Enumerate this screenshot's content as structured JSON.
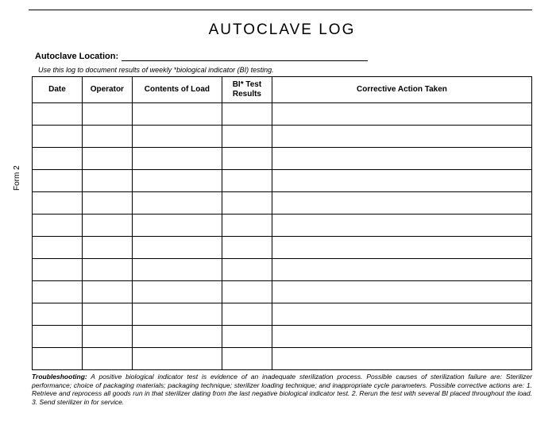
{
  "form_label": "Form 2",
  "title": "AUTOCLAVE  LOG",
  "location_label": "Autoclave Location:",
  "instruction": "Use this log to document results of weekly *biological indicator (BI) testing.",
  "table": {
    "columns": [
      {
        "header": "Date",
        "class": "col-date"
      },
      {
        "header": "Operator",
        "class": "col-operator"
      },
      {
        "header": "Contents of Load",
        "class": "col-contents"
      },
      {
        "header": "BI* Test Results",
        "class": "col-bi"
      },
      {
        "header": "Corrective Action Taken",
        "class": "col-corrective"
      }
    ],
    "row_count": 12
  },
  "troubleshooting_label": "Troubleshooting:",
  "troubleshooting_text": " A positive biological indicator test is evidence of an inadequate sterilization process. Possible causes of sterilization failure are: Sterilizer performance; choice of packaging materials; packaging technique; sterilizer loading technique; and inappropriate cycle parameters. Possible corrective actions are: 1. Retrieve and reprocess all goods run in that sterilizer dating from the last negative biological indicator test. 2. Rerun the test with several BI placed throughout the load. 3. Send sterilizer in for service."
}
